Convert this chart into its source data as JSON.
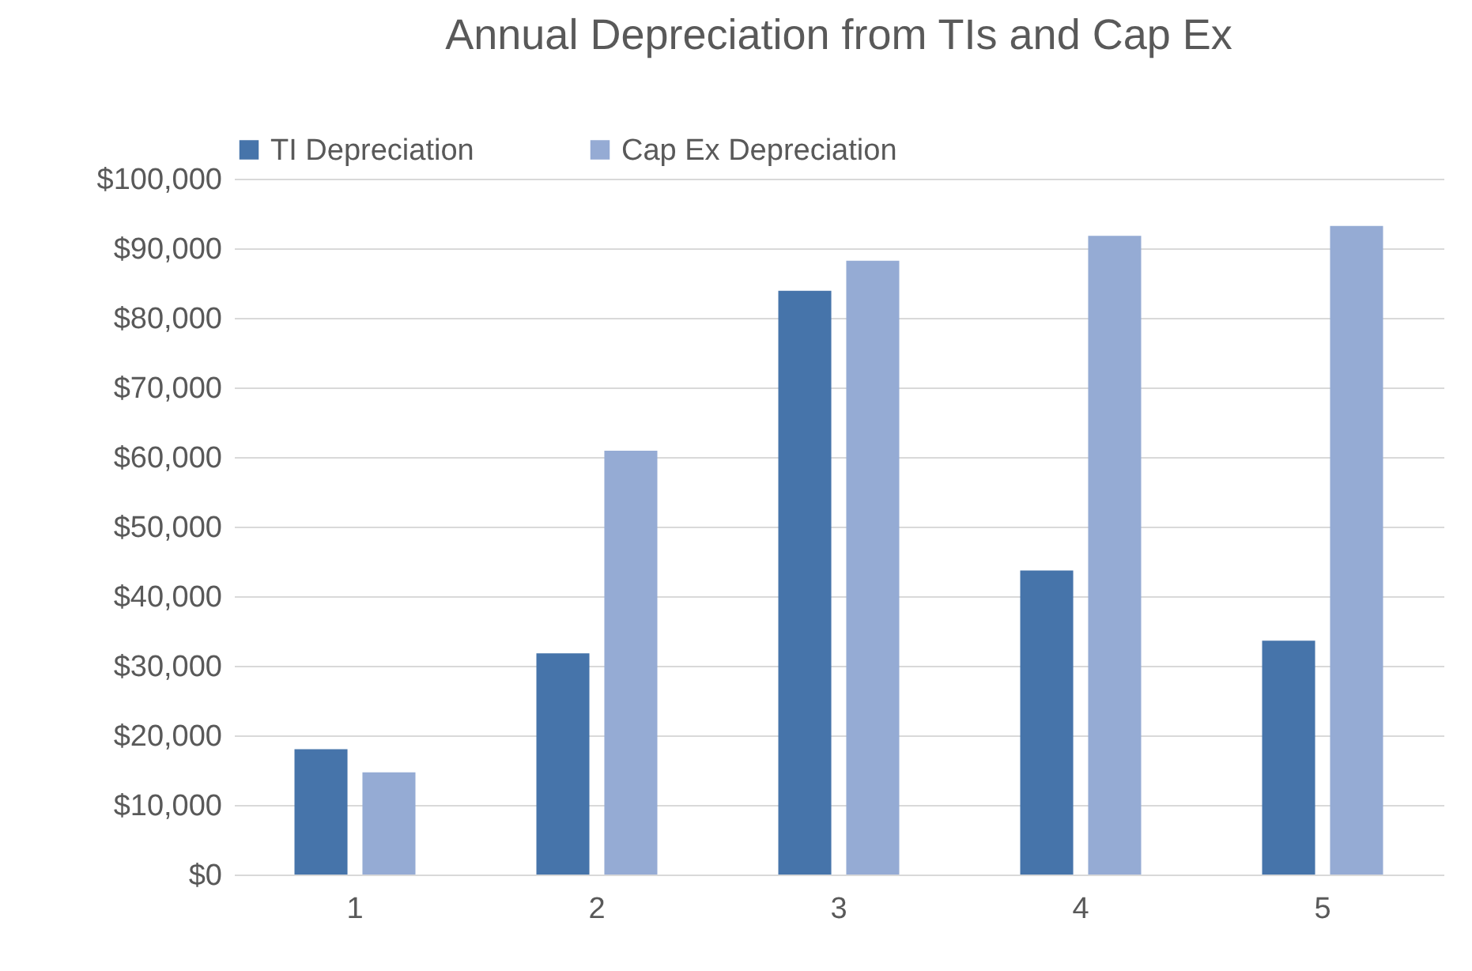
{
  "chart_data": {
    "type": "bar",
    "title": "Annual Depreciation from TIs and Cap Ex",
    "categories": [
      "1",
      "2",
      "3",
      "4",
      "5"
    ],
    "series": [
      {
        "name": "TI Depreciation",
        "color": "#4674aa",
        "values": [
          18000,
          31800,
          83900,
          43700,
          33600
        ]
      },
      {
        "name": "Cap Ex Depreciation",
        "color": "#95abd4",
        "values": [
          14700,
          60900,
          88200,
          91800,
          93200
        ]
      }
    ],
    "ylim": [
      0,
      100000
    ],
    "yticks": [
      {
        "value": 0,
        "label": "$0"
      },
      {
        "value": 10000,
        "label": "$10,000"
      },
      {
        "value": 20000,
        "label": "$20,000"
      },
      {
        "value": 30000,
        "label": "$30,000"
      },
      {
        "value": 40000,
        "label": "$40,000"
      },
      {
        "value": 50000,
        "label": "$50,000"
      },
      {
        "value": 60000,
        "label": "$60,000"
      },
      {
        "value": 70000,
        "label": "$70,000"
      },
      {
        "value": 80000,
        "label": "$80,000"
      },
      {
        "value": 90000,
        "label": "$90,000"
      },
      {
        "value": 100000,
        "label": "$100,000"
      }
    ],
    "grid": "y",
    "legend": "top"
  }
}
